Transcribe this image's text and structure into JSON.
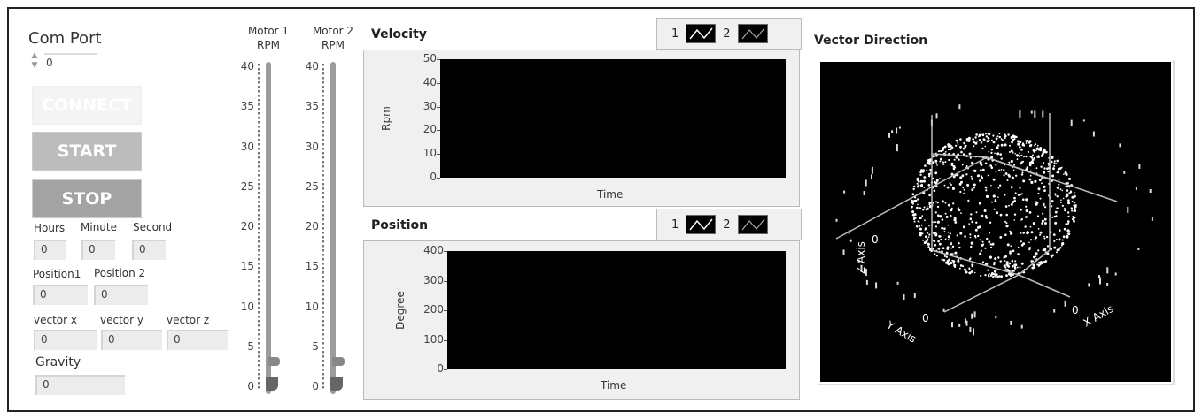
{
  "com_port": {
    "label": "Com Port",
    "value": "0"
  },
  "buttons": {
    "connect": "CONNECT",
    "start": "START",
    "stop": "STOP"
  },
  "time": {
    "hours_label": "Hours",
    "minute_label": "Minute",
    "second_label": "Second",
    "hours": "0",
    "minute": "0",
    "second": "0"
  },
  "position": {
    "p1_label": "Position1",
    "p2_label": "Position 2",
    "p1": "0",
    "p2": "0"
  },
  "vector": {
    "x_label": "vector x",
    "y_label": "vector y",
    "z_label": "vector z",
    "x": "0",
    "y": "0",
    "z": "0"
  },
  "gravity": {
    "label": "Gravity",
    "value": "0"
  },
  "motors": [
    {
      "label1": "Motor 1",
      "label2": "RPM",
      "value": 0,
      "scale": [
        "40",
        "35",
        "30",
        "25",
        "20",
        "15",
        "10",
        "5",
        "0"
      ]
    },
    {
      "label1": "Motor 2",
      "label2": "RPM",
      "value": 0,
      "scale": [
        "40",
        "35",
        "30",
        "25",
        "20",
        "15",
        "10",
        "5",
        "0"
      ]
    }
  ],
  "velocity_graph": {
    "title": "Velocity",
    "ylabel": "Rpm",
    "xlabel": "Time",
    "yticks": [
      "50",
      "40",
      "30",
      "20",
      "10",
      "0"
    ],
    "ylim": [
      0,
      50
    ],
    "legend": [
      "1",
      "2"
    ]
  },
  "position_graph": {
    "title": "Position",
    "ylabel": "Degree",
    "xlabel": "Time",
    "yticks": [
      "400",
      "300",
      "200",
      "100",
      "0"
    ],
    "ylim": [
      0,
      400
    ],
    "legend": [
      "1",
      "2"
    ]
  },
  "vector_direction": {
    "title": "Vector Direction",
    "z_axis": "Z Axis",
    "y_axis": "Y Axis",
    "x_axis": "X Axis",
    "zero": "0",
    "plot_type": "3d-scatter-sphere",
    "background": "#000000",
    "point_color": "#ffffff"
  }
}
